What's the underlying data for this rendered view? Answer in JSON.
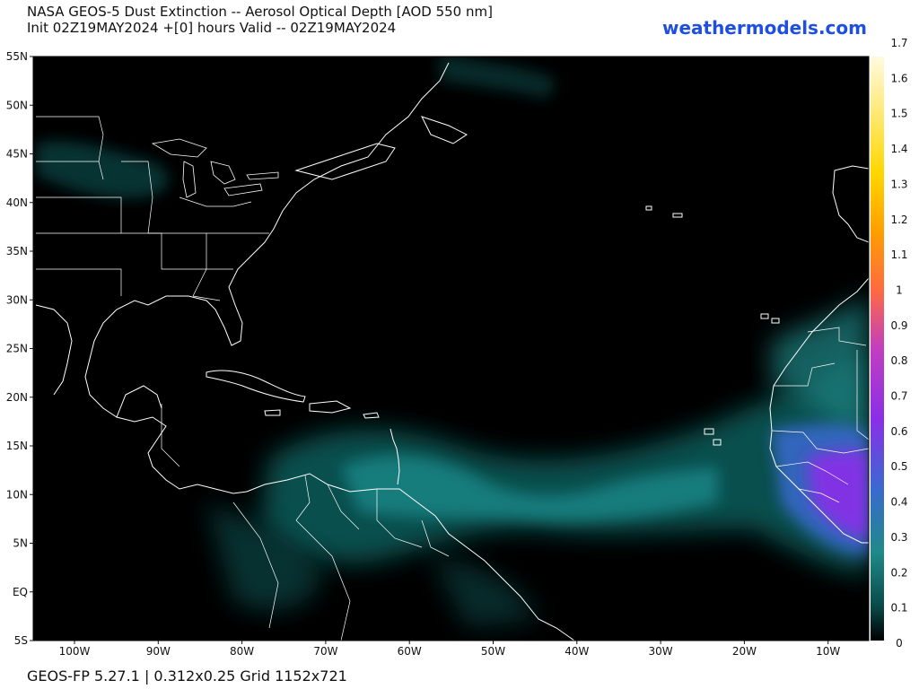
{
  "header": {
    "title_line1": "NASA GEOS-5 Dust Extinction -- Aerosol Optical Depth [AOD 550 nm]",
    "title_line2": "Init 02Z19MAY2024 +[0] hours Valid -- 02Z19MAY2024",
    "brand": "weathermodels.com"
  },
  "footer": {
    "text": "GEOS-FP 5.27.1 | 0.312x0.25 Grid 1152x721"
  },
  "map": {
    "lat_labels": [
      "55N",
      "50N",
      "45N",
      "40N",
      "35N",
      "30N",
      "25N",
      "20N",
      "15N",
      "10N",
      "5N",
      "EQ",
      "5S"
    ],
    "lon_labels": [
      "100W",
      "90W",
      "80W",
      "70W",
      "60W",
      "50W",
      "40W",
      "30W",
      "20W",
      "10W"
    ]
  },
  "colorbar": {
    "ticks": [
      "0",
      "0.1",
      "0.2",
      "0.3",
      "0.4",
      "0.5",
      "0.6",
      "0.7",
      "0.8",
      "0.9",
      "1",
      "1.1",
      "1.2",
      "1.3",
      "1.4",
      "1.5",
      "1.6",
      "1.7"
    ],
    "range": [
      0,
      1.7
    ],
    "colors": [
      "#000000",
      "#0a4a4a",
      "#1e8a88",
      "#3a6ad0",
      "#8a2ee8",
      "#c23ec0",
      "#ff6a40",
      "#ff9e00",
      "#ffd600",
      "#fffbe0"
    ]
  },
  "colors": {
    "background": "#000000",
    "boundaries": "#ffffff",
    "brand": "#1f4fe0"
  }
}
